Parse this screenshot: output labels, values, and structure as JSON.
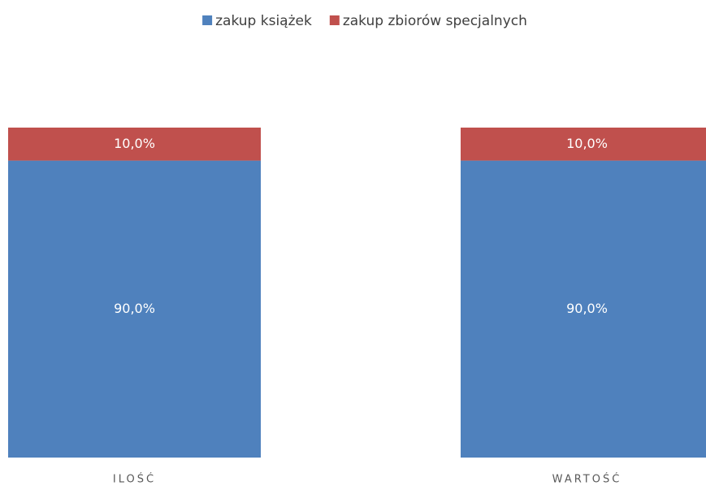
{
  "chart_data": {
    "type": "stacked_bar",
    "categories": [
      "ILOŚĆ",
      "WARTOŚĆ"
    ],
    "series": [
      {
        "name": "zakup książek",
        "color": "#4f81bd",
        "values": [
          90,
          90
        ],
        "value_labels": [
          "90,0%",
          "90,0%"
        ]
      },
      {
        "name": "zakup zbiorów specjalnych",
        "color": "#c0504d",
        "values": [
          10,
          10
        ],
        "value_labels": [
          "10,0%",
          "10,0%"
        ]
      }
    ],
    "legend": "top"
  }
}
